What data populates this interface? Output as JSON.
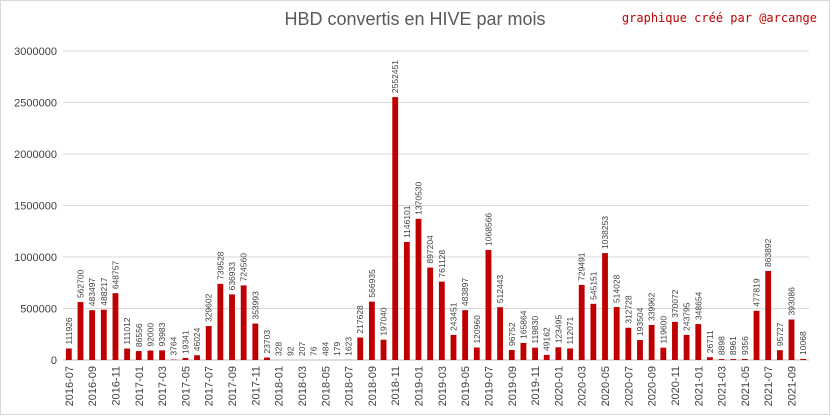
{
  "chart_data": {
    "type": "bar",
    "title": "HBD convertis en HIVE par mois",
    "credit": "graphique créé par @arcange",
    "xlabel": "",
    "ylabel": "",
    "ylim": [
      0,
      3000000
    ],
    "yticks": [
      0,
      500000,
      1000000,
      1500000,
      2000000,
      2500000,
      3000000
    ],
    "grid": true,
    "legend": "none",
    "bar_color": "#c00000",
    "categories": [
      "2016-07",
      "2016-08",
      "2016-09",
      "2016-10",
      "2016-11",
      "2016-12",
      "2017-01",
      "2017-02",
      "2017-03",
      "2017-04",
      "2017-05",
      "2017-06",
      "2017-07",
      "2017-08",
      "2017-09",
      "2017-10",
      "2017-11",
      "2017-12",
      "2018-01",
      "2018-02",
      "2018-03",
      "2018-04",
      "2018-05",
      "2018-06",
      "2018-07",
      "2018-08",
      "2018-09",
      "2018-10",
      "2018-11",
      "2018-12",
      "2019-01",
      "2019-02",
      "2019-03",
      "2019-04",
      "2019-05",
      "2019-06",
      "2019-07",
      "2019-08",
      "2019-09",
      "2019-10",
      "2019-11",
      "2019-12",
      "2020-01",
      "2020-02",
      "2020-03",
      "2020-04",
      "2020-05",
      "2020-06",
      "2020-07",
      "2020-08",
      "2020-09",
      "2020-10",
      "2020-11",
      "2020-12",
      "2021-01",
      "2021-02",
      "2021-03",
      "2021-04",
      "2021-05",
      "2021-06",
      "2021-07",
      "2021-08",
      "2021-09",
      "2021-10"
    ],
    "values": [
      111926,
      562700,
      483497,
      488217,
      648757,
      111012,
      86556,
      92000,
      93983,
      3764,
      19341,
      46024,
      329602,
      739528,
      636933,
      724560,
      353993,
      23703,
      328,
      92,
      207,
      76,
      484,
      179,
      1623,
      217628,
      566935,
      197040,
      2552451,
      1146101,
      1370530,
      897204,
      761128,
      243451,
      483897,
      120960,
      1068566,
      512443,
      96752,
      165864,
      119830,
      49162,
      123495,
      112071,
      729491,
      545151,
      1038253,
      514028,
      312728,
      193504,
      339962,
      119600,
      370072,
      243795,
      348654,
      26711,
      8898,
      8961,
      9356,
      477819,
      863892,
      95727,
      393086,
      10068
    ]
  }
}
